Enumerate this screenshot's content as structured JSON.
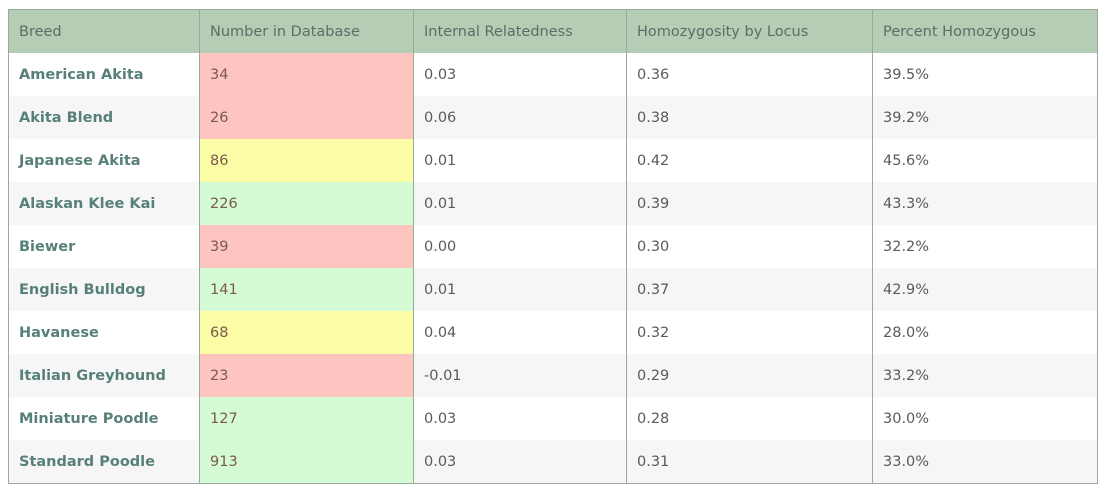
{
  "table": {
    "headers": [
      "Breed",
      "Number in Database",
      "Internal Relatedness",
      "Homozygosity by Locus",
      "Percent Homozygous"
    ],
    "rows": [
      {
        "breed": "American Akita",
        "count": "34",
        "level": "red",
        "ir": "0.03",
        "hl": "0.36",
        "pct": "39.5%"
      },
      {
        "breed": "Akita Blend",
        "count": "26",
        "level": "red",
        "ir": "0.06",
        "hl": "0.38",
        "pct": "39.2%"
      },
      {
        "breed": "Japanese Akita",
        "count": "86",
        "level": "yellow",
        "ir": "0.01",
        "hl": "0.42",
        "pct": "45.6%"
      },
      {
        "breed": "Alaskan Klee Kai",
        "count": "226",
        "level": "green",
        "ir": "0.01",
        "hl": "0.39",
        "pct": "43.3%"
      },
      {
        "breed": "Biewer",
        "count": "39",
        "level": "red",
        "ir": "0.00",
        "hl": "0.30",
        "pct": "32.2%"
      },
      {
        "breed": "English Bulldog",
        "count": "141",
        "level": "green",
        "ir": "0.01",
        "hl": "0.37",
        "pct": "42.9%"
      },
      {
        "breed": "Havanese",
        "count": "68",
        "level": "yellow",
        "ir": "0.04",
        "hl": "0.32",
        "pct": "28.0%"
      },
      {
        "breed": "Italian Greyhound",
        "count": "23",
        "level": "red",
        "ir": "-0.01",
        "hl": "0.29",
        "pct": "33.2%"
      },
      {
        "breed": "Miniature Poodle",
        "count": "127",
        "level": "green",
        "ir": "0.03",
        "hl": "0.28",
        "pct": "30.0%"
      },
      {
        "breed": "Standard Poodle",
        "count": "913",
        "level": "green",
        "ir": "0.03",
        "hl": "0.31",
        "pct": "33.0%"
      }
    ]
  },
  "colors": {
    "header_bg": "#b5ccb5",
    "red": "#fdc4c0",
    "yellow": "#fcfca6",
    "green": "#d4fbd4"
  }
}
